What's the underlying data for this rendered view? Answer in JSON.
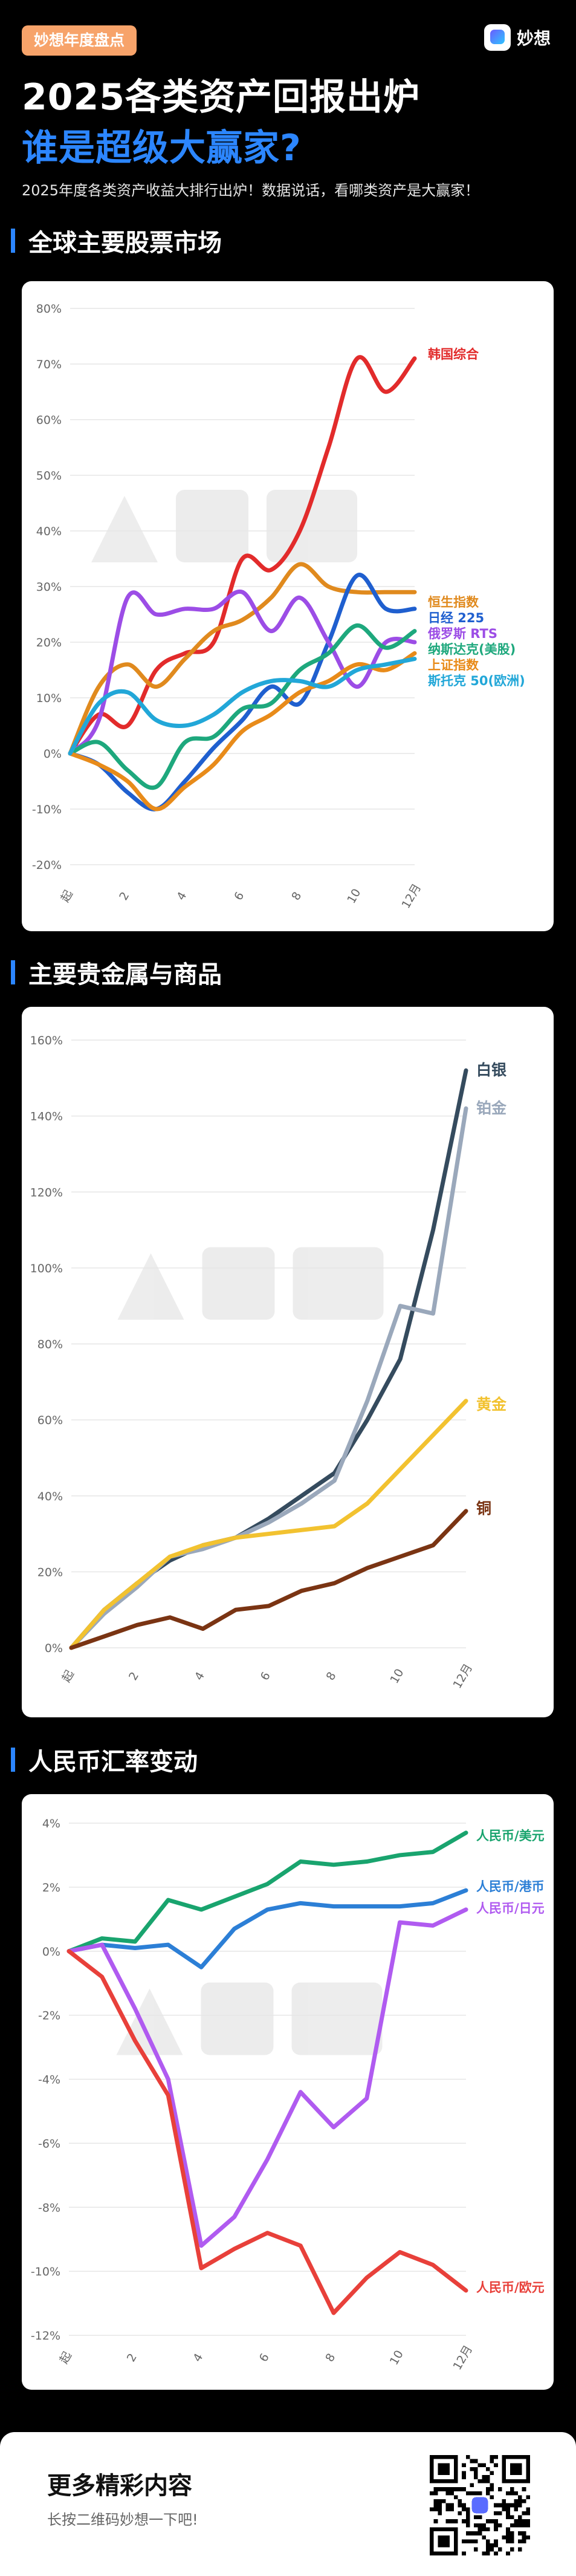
{
  "header": {
    "badge": "妙想年度盘点",
    "brand_name": "妙想",
    "title_line1": "2025各类资产回报出炉",
    "title_line2": "谁是超级大赢家?",
    "subtitle": "2025年度各类资产收益大排行出炉！数据说话，看哪类资产是大赢家！"
  },
  "sections": [
    {
      "title": "全球主要股票市场"
    },
    {
      "title": "主要贵金属与商品"
    },
    {
      "title": "人民币汇率变动"
    }
  ],
  "footer": {
    "title": "更多精彩内容",
    "subtitle": "长按二维码妙想一下吧!"
  },
  "colors": {
    "accent": "#2c86ff",
    "badge": "#f7a36a",
    "grid": "#e6e6e6"
  },
  "chart_data": [
    {
      "type": "line",
      "x": [
        "起",
        "1",
        "2",
        "3",
        "4",
        "5",
        "6",
        "7",
        "8",
        "9",
        "10",
        "11",
        "12月"
      ],
      "xticks": [
        "起",
        "2",
        "4",
        "6",
        "8",
        "10",
        "12月"
      ],
      "ylim": [
        -20,
        80
      ],
      "yticks": [
        "-20%",
        "-10%",
        "0%",
        "10%",
        "20%",
        "30%",
        "40%",
        "50%",
        "60%",
        "70%",
        "80%"
      ],
      "grid": true,
      "series": [
        {
          "name": "韩国综合",
          "color": "#e22b2b",
          "values": [
            0,
            7,
            5,
            15,
            18,
            20,
            35,
            33,
            40,
            55,
            71,
            65,
            71
          ]
        },
        {
          "name": "恒生指数",
          "color": "#e08a1e",
          "values": [
            0,
            12,
            16,
            12,
            17,
            22,
            24,
            28,
            34,
            30,
            29,
            29,
            29
          ]
        },
        {
          "name": "日经 225",
          "color": "#1f5fcf",
          "values": [
            0,
            -2,
            -7,
            -10,
            -5,
            1,
            6,
            12,
            9,
            20,
            32,
            26,
            26
          ]
        },
        {
          "name": "俄罗斯 RTS",
          "color": "#9c4de6",
          "values": [
            0,
            6,
            28,
            25,
            26,
            26,
            29,
            22,
            28,
            20,
            12,
            20,
            20
          ]
        },
        {
          "name": "纳斯达克(美股)",
          "color": "#1ea87d",
          "values": [
            0,
            2,
            -3,
            -6,
            2,
            3,
            8,
            9,
            15,
            18,
            23,
            19,
            22
          ]
        },
        {
          "name": "上证指数",
          "color": "#e88b1a",
          "values": [
            0,
            -2,
            -5,
            -10,
            -6,
            -2,
            4,
            7,
            11,
            13,
            16,
            15,
            18
          ]
        },
        {
          "name": "斯托克 50(欧洲)",
          "color": "#22a7d8",
          "values": [
            0,
            9,
            11,
            6,
            5,
            7,
            11,
            13,
            13,
            12,
            15,
            16,
            17
          ]
        }
      ]
    },
    {
      "type": "line",
      "x": [
        "起",
        "1",
        "2",
        "3",
        "4",
        "5",
        "6",
        "7",
        "8",
        "9",
        "10",
        "11",
        "12月"
      ],
      "xticks": [
        "起",
        "2",
        "4",
        "6",
        "8",
        "10",
        "12月"
      ],
      "ylim": [
        0,
        160
      ],
      "yticks": [
        "0%",
        "20%",
        "40%",
        "60%",
        "80%",
        "100%",
        "120%",
        "140%",
        "160%"
      ],
      "grid": true,
      "series": [
        {
          "name": "白银",
          "color": "#354b5e",
          "values": [
            0,
            10,
            17,
            23,
            27,
            29,
            34,
            40,
            46,
            60,
            76,
            110,
            152
          ]
        },
        {
          "name": "铂金",
          "color": "#9aa8bb",
          "values": [
            0,
            9,
            16,
            24,
            26,
            29,
            33,
            38,
            44,
            65,
            90,
            88,
            142
          ]
        },
        {
          "name": "黄金",
          "color": "#f2c230",
          "values": [
            0,
            10,
            17,
            24,
            27,
            29,
            30,
            31,
            32,
            38,
            47,
            56,
            65
          ]
        },
        {
          "name": "铜",
          "color": "#7a3413",
          "values": [
            0,
            3,
            6,
            8,
            5,
            10,
            11,
            15,
            17,
            21,
            24,
            27,
            36
          ]
        }
      ]
    },
    {
      "type": "line",
      "x": [
        "起",
        "1",
        "2",
        "3",
        "4",
        "5",
        "6",
        "7",
        "8",
        "9",
        "10",
        "11",
        "12月"
      ],
      "xticks": [
        "起",
        "2",
        "4",
        "6",
        "8",
        "10",
        "12月"
      ],
      "ylim": [
        -12,
        4
      ],
      "yticks": [
        "-12%",
        "-10%",
        "-8%",
        "-6%",
        "-4%",
        "-2%",
        "0%",
        "2%",
        "4%"
      ],
      "grid": true,
      "series": [
        {
          "name": "人民币/美元",
          "color": "#19a46e",
          "values": [
            0,
            0.4,
            0.3,
            1.6,
            1.3,
            1.7,
            2.1,
            2.8,
            2.7,
            2.8,
            3.0,
            3.1,
            3.7
          ]
        },
        {
          "name": "人民币/港币",
          "color": "#2c7fd6",
          "values": [
            0,
            0.2,
            0.1,
            0.2,
            -0.5,
            0.7,
            1.3,
            1.5,
            1.4,
            1.4,
            1.4,
            1.5,
            1.9
          ]
        },
        {
          "name": "人民币/日元",
          "color": "#b05bf0",
          "values": [
            0,
            0.2,
            -1.8,
            -4.0,
            -9.2,
            -8.3,
            -6.5,
            -4.4,
            -5.5,
            -4.6,
            0.9,
            0.8,
            1.3
          ]
        },
        {
          "name": "人民币/欧元",
          "color": "#e8403a",
          "values": [
            0,
            -0.8,
            -2.8,
            -4.5,
            -9.9,
            -9.3,
            -8.8,
            -9.2,
            -11.3,
            -10.2,
            -9.4,
            -9.8,
            -10.6
          ]
        }
      ]
    }
  ]
}
